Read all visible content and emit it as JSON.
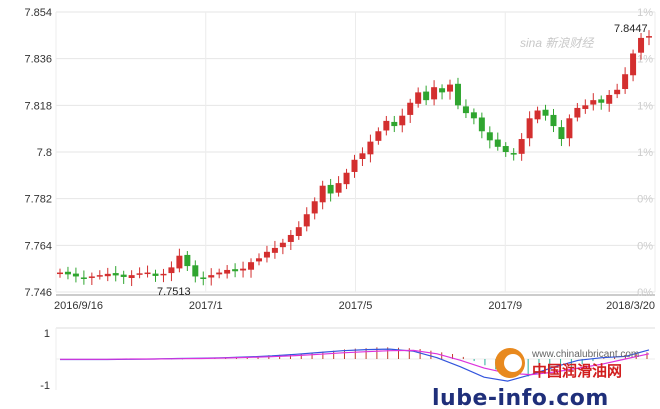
{
  "chart_data": {
    "type": "candlestick",
    "title": "",
    "y_ticks": [
      "7.854",
      "7.836",
      "7.818",
      "7.8",
      "7.782",
      "7.764",
      "7.746"
    ],
    "y_right_ticks": [
      "1%",
      "1%",
      "1%",
      "1%",
      "0%",
      "0%",
      "0%"
    ],
    "ylim": [
      7.746,
      7.854
    ],
    "x_ticks": [
      "2016/9/16",
      "2017/1",
      "2017/5",
      "2017/9",
      "2018/3/20"
    ],
    "annotations": {
      "low_label": "7.7513",
      "high_label": "7.8447"
    },
    "grid": true,
    "up_color": "#d32f2f",
    "down_color": "#2fa52f",
    "closes": [
      7.7535,
      7.7528,
      7.752,
      7.7515,
      7.752,
      7.7525,
      7.753,
      7.7524,
      7.7518,
      7.7525,
      7.7532,
      7.7535,
      7.7522,
      7.753,
      7.7555,
      7.76,
      7.756,
      7.752,
      7.7513,
      7.7525,
      7.7535,
      7.7545,
      7.754,
      7.755,
      7.7575,
      7.759,
      7.7615,
      7.763,
      7.765,
      7.768,
      7.771,
      7.776,
      7.781,
      7.787,
      7.784,
      7.788,
      7.792,
      7.797,
      7.7995,
      7.804,
      7.808,
      7.812,
      7.81,
      7.814,
      7.819,
      7.823,
      7.82,
      7.825,
      7.823,
      7.826,
      7.818,
      7.815,
      7.813,
      7.808,
      7.8045,
      7.802,
      7.8,
      7.799,
      7.805,
      7.813,
      7.816,
      7.814,
      7.81,
      7.805,
      7.813,
      7.817,
      7.818,
      7.82,
      7.819,
      7.822,
      7.824,
      7.83,
      7.838,
      7.844,
      7.8447
    ],
    "macd_panel": {
      "y_ticks": [
        "1",
        "-1"
      ],
      "series": [
        {
          "values": [
            -0.02,
            -0.02,
            -0.02,
            -0.01,
            0.0,
            0.02,
            0.03,
            0.05,
            0.08,
            0.12,
            0.18,
            0.25,
            0.32,
            0.36,
            0.38,
            0.3,
            0.05,
            -0.3,
            -0.7,
            -0.85,
            -0.6,
            -0.3,
            -0.05,
            0.05,
            0.1,
            0.35
          ],
          "color": "#3355dd"
        },
        {
          "values": [
            -0.01,
            -0.01,
            -0.01,
            0.0,
            0.0,
            0.01,
            0.02,
            0.04,
            0.06,
            0.09,
            0.13,
            0.18,
            0.24,
            0.28,
            0.32,
            0.33,
            0.2,
            -0.05,
            -0.35,
            -0.55,
            -0.6,
            -0.5,
            -0.35,
            -0.2,
            0.0,
            0.2
          ],
          "color": "#dd33dd"
        }
      ],
      "histogram": [
        0.0,
        0.0,
        -0.01,
        -0.01,
        0.0,
        0.02,
        0.03,
        0.03,
        0.05,
        0.06,
        0.07,
        0.09,
        0.1,
        0.12,
        0.13,
        0.15,
        0.18,
        0.2,
        0.23,
        0.25,
        0.26,
        0.28,
        0.28,
        0.27,
        0.26,
        0.24,
        0.2,
        0.16,
        0.12,
        0.05,
        -0.05,
        -0.15,
        -0.25,
        -0.35,
        -0.4,
        -0.42,
        -0.4,
        -0.35,
        -0.28,
        -0.2,
        -0.12,
        -0.05,
        0.02,
        0.06,
        0.1,
        0.13,
        0.16
      ]
    }
  },
  "watermark": {
    "logo_text": "sina 新浪财经"
  },
  "site_brand": {
    "cn_name": "中国润滑油网",
    "url": "www.chinalubricant.com",
    "domain_text": "lube-info.com"
  }
}
